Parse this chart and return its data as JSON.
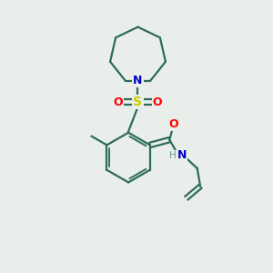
{
  "background_color": "#eaeeea",
  "bond_color": "#2d6b5e",
  "atom_colors": {
    "N": "#0000cc",
    "O": "#ff0000",
    "S": "#cccc00",
    "C": "#2d6b5e",
    "H": "#6a9a90"
  },
  "figsize": [
    3.0,
    3.0
  ],
  "dpi": 100,
  "lw": 1.6
}
